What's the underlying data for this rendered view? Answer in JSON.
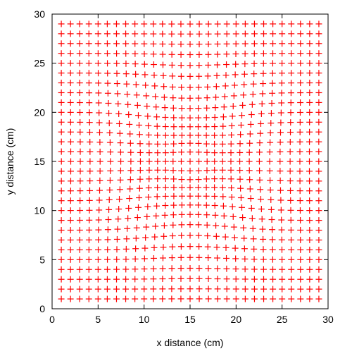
{
  "chart_data": {
    "type": "scatter",
    "title": "",
    "xlabel": "x distance (cm)",
    "ylabel": "y distance (cm)",
    "xlim": [
      0,
      30
    ],
    "ylim": [
      0,
      30
    ],
    "xticks": [
      0,
      5,
      10,
      15,
      20,
      25,
      30
    ],
    "yticks": [
      0,
      5,
      10,
      15,
      20,
      25,
      30
    ],
    "grid": false,
    "legend": "none",
    "marker": "plus",
    "marker_color": "#ff0000",
    "series": [
      {
        "grid_x": {
          "start": 1,
          "end": 29,
          "step": 1
        },
        "grid_y": {
          "start": 1,
          "end": 29,
          "step": 1
        },
        "warp": {
          "type": "inward_radial",
          "center": [
            15,
            15
          ],
          "amplitude_cm": 0.6,
          "peak_radius_cm": 6,
          "decay_cm": 4
        }
      }
    ]
  }
}
